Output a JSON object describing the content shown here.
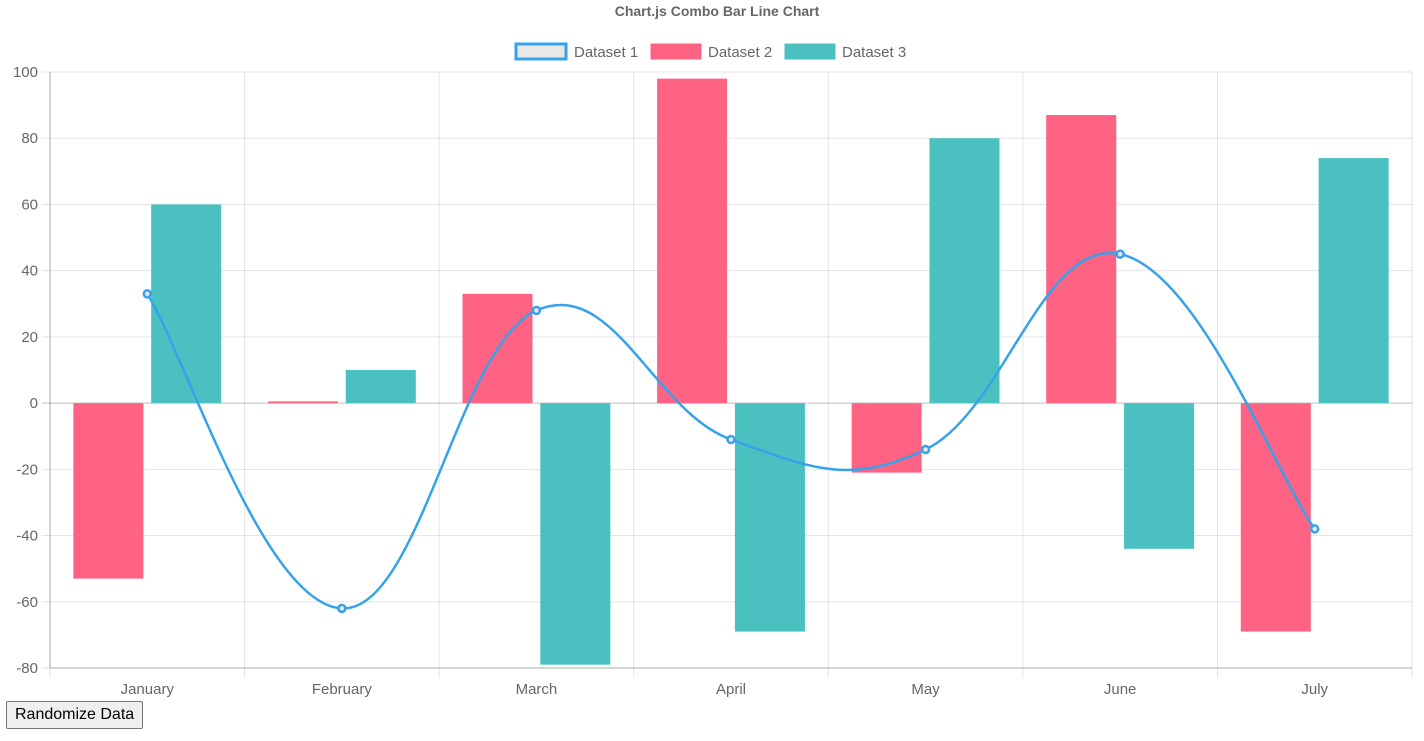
{
  "controls": {
    "randomize_label": "Randomize Data"
  },
  "chart_data": {
    "type": "bar",
    "title": "Chart.js Combo Bar Line Chart",
    "categories": [
      "January",
      "February",
      "March",
      "April",
      "May",
      "June",
      "July"
    ],
    "ylim": [
      -80,
      100
    ],
    "yticks": [
      100,
      80,
      60,
      40,
      20,
      0,
      -20,
      -40,
      -60,
      -80
    ],
    "grid": true,
    "legend_position": "top",
    "series": [
      {
        "name": "Dataset 1",
        "type": "line",
        "color": "#36a2eb",
        "values": [
          33,
          -62,
          28,
          -11,
          -14,
          45,
          -38
        ]
      },
      {
        "name": "Dataset 2",
        "type": "bar",
        "color": "#ff6384",
        "values": [
          -53,
          0.5,
          33,
          98,
          -21,
          87,
          -69
        ]
      },
      {
        "name": "Dataset 3",
        "type": "bar",
        "color": "#4bc0c0",
        "values": [
          60,
          10,
          -79,
          -69,
          80,
          -44,
          74
        ]
      }
    ]
  }
}
